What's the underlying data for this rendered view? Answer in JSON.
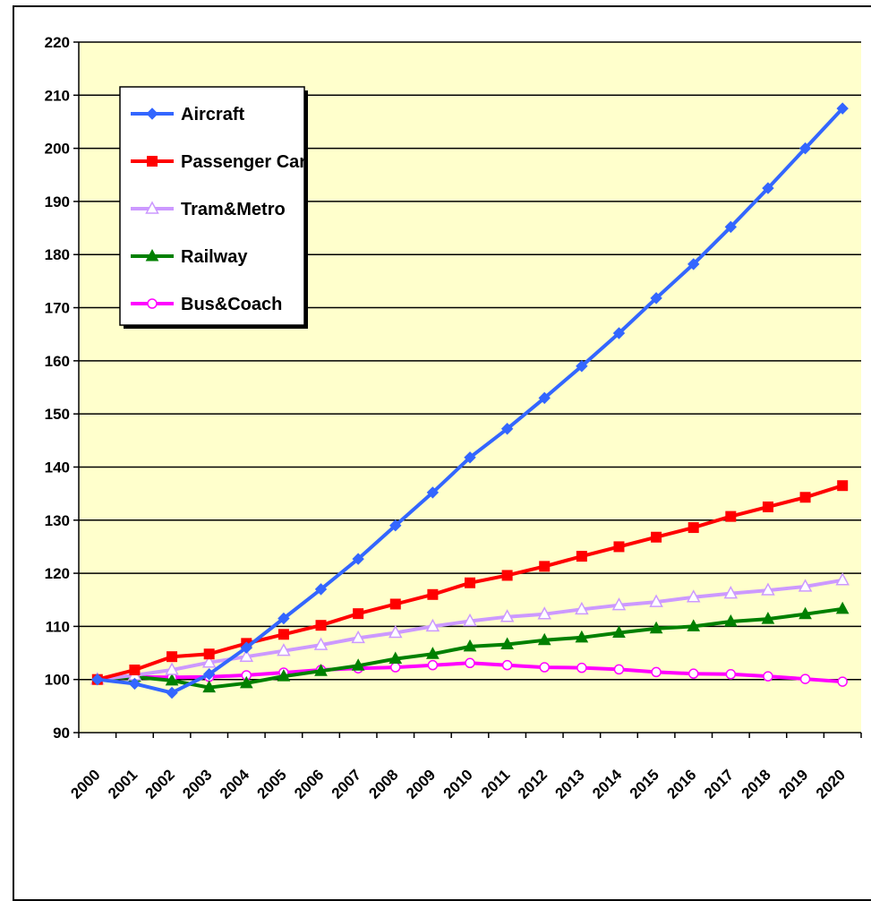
{
  "chart_data": {
    "type": "line",
    "title": "",
    "xlabel": "",
    "ylabel": "",
    "x": [
      "2000",
      "2001",
      "2002",
      "2003",
      "2004",
      "2005",
      "2006",
      "2007",
      "2008",
      "2009",
      "2010",
      "2011",
      "2012",
      "2013",
      "2014",
      "2015",
      "2016",
      "2017",
      "2018",
      "2019",
      "2020"
    ],
    "ylim": [
      90,
      220
    ],
    "yticks": [
      90,
      100,
      110,
      120,
      130,
      140,
      150,
      160,
      170,
      180,
      190,
      200,
      210,
      220
    ],
    "grid": true,
    "legend_position": "top-left",
    "plot_background": "#ffffcc",
    "series": [
      {
        "name": "Aircraft",
        "color": "#3366ff",
        "marker": "diamond",
        "values": [
          100,
          99.2,
          97.5,
          101,
          106,
          111.5,
          117,
          122.7,
          129,
          135.2,
          141.8,
          147.2,
          153,
          159,
          165.2,
          171.8,
          178.2,
          185.2,
          192.5,
          200,
          207.5
        ]
      },
      {
        "name": "Passenger Car",
        "color": "#ff0000",
        "marker": "square",
        "values": [
          100,
          101.8,
          104.3,
          104.8,
          106.8,
          108.5,
          110.2,
          112.4,
          114.2,
          116,
          118.2,
          119.6,
          121.3,
          123.2,
          125,
          126.8,
          128.6,
          130.7,
          132.5,
          134.3,
          136.5
        ]
      },
      {
        "name": "Tram&Metro",
        "color": "#cc99ff",
        "marker": "triangle-open",
        "values": [
          100,
          100.8,
          101.8,
          103.2,
          104.3,
          105.4,
          106.5,
          107.8,
          108.8,
          110,
          111,
          111.8,
          112.3,
          113.2,
          114,
          114.6,
          115.5,
          116.2,
          116.8,
          117.5,
          118.7
        ]
      },
      {
        "name": "Railway",
        "color": "#008000",
        "marker": "triangle",
        "values": [
          100,
          100.5,
          99.8,
          98.5,
          99.3,
          100.6,
          101.6,
          102.6,
          103.9,
          104.8,
          106.2,
          106.6,
          107.4,
          107.9,
          108.8,
          109.6,
          110,
          110.9,
          111.4,
          112.3,
          113.3
        ]
      },
      {
        "name": "Bus&Coach",
        "color": "#ff00ff",
        "marker": "circle-open",
        "values": [
          100,
          100.5,
          100.4,
          100.5,
          100.8,
          101.3,
          101.8,
          102.1,
          102.3,
          102.7,
          103.1,
          102.7,
          102.3,
          102.2,
          101.9,
          101.4,
          101.1,
          101,
          100.6,
          100.1,
          99.6
        ]
      }
    ]
  }
}
